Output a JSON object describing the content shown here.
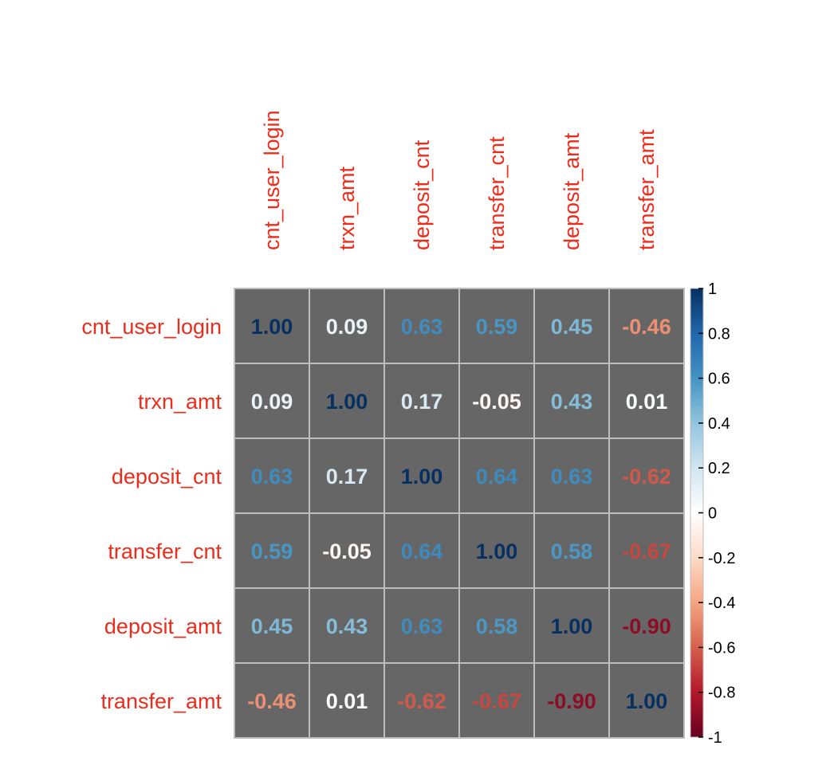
{
  "chart_data": {
    "type": "heatmap",
    "variables": [
      "cnt_user_login",
      "trxn_amt",
      "deposit_cnt",
      "transfer_cnt",
      "deposit_amt",
      "transfer_amt"
    ],
    "matrix": [
      [
        1.0,
        0.09,
        0.63,
        0.59,
        0.45,
        -0.46
      ],
      [
        0.09,
        1.0,
        0.17,
        -0.05,
        0.43,
        0.01
      ],
      [
        0.63,
        0.17,
        1.0,
        0.64,
        0.63,
        -0.62
      ],
      [
        0.59,
        -0.05,
        0.64,
        1.0,
        0.58,
        -0.67
      ],
      [
        0.45,
        0.43,
        0.63,
        0.58,
        1.0,
        -0.9
      ],
      [
        -0.46,
        0.01,
        -0.62,
        -0.67,
        -0.9,
        1.0
      ]
    ],
    "value_labels": [
      [
        "1.00",
        "0.09",
        "0.63",
        "0.59",
        "0.45",
        "-0.46"
      ],
      [
        "0.09",
        "1.00",
        "0.17",
        "-0.05",
        "0.43",
        "0.01"
      ],
      [
        "0.63",
        "0.17",
        "1.00",
        "0.64",
        "0.63",
        "-0.62"
      ],
      [
        "0.59",
        "-0.05",
        "0.64",
        "1.00",
        "0.58",
        "-0.67"
      ],
      [
        "0.45",
        "0.43",
        "0.63",
        "0.58",
        "1.00",
        "-0.90"
      ],
      [
        "-0.46",
        "0.01",
        "-0.62",
        "-0.67",
        "-0.90",
        "1.00"
      ]
    ],
    "colorbar": {
      "range": [
        -1,
        1
      ],
      "ticks": [
        1,
        0.8,
        0.6,
        0.4,
        0.2,
        0,
        -0.2,
        -0.4,
        -0.6,
        -0.8,
        -1
      ],
      "tick_labels": [
        "1",
        "0.8",
        "0.6",
        "0.4",
        "0.2",
        "0",
        "-0.2",
        "-0.4",
        "-0.6",
        "-0.8",
        "-1"
      ],
      "placement": "right"
    },
    "colors": {
      "cell_background": "#666666",
      "grid": "#bdbdbd",
      "variable_label": "#ee2c1b",
      "tick_text": "#000000",
      "palette": [
        "#67001f",
        "#b2182b",
        "#d6604d",
        "#f4a582",
        "#fddbc7",
        "#ffffff",
        "#d1e5f0",
        "#92c5de",
        "#4393c3",
        "#2166ac",
        "#053061"
      ]
    }
  }
}
